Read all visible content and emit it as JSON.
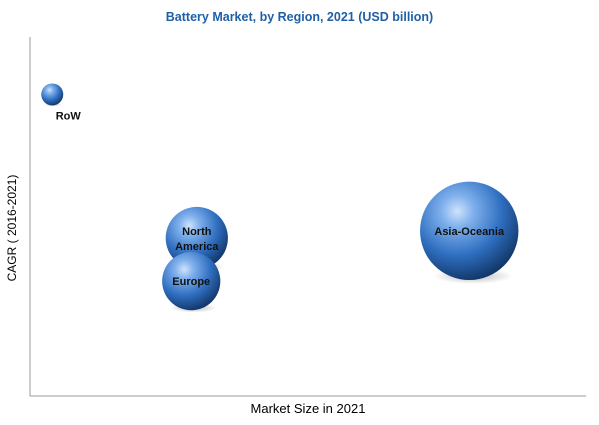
{
  "chart_data": {
    "type": "scatter",
    "title": "Battery Market, by Region, 2021 (USD billion)",
    "xlabel": "Market Size in 2021",
    "ylabel": "CAGR ( 2016-2021)",
    "grid": false,
    "legend": "none",
    "xlim": [
      0,
      100
    ],
    "ylim": [
      0,
      100
    ],
    "series": [
      {
        "points": [
          {
            "label": "RoW",
            "label_lines": [
              "RoW"
            ],
            "x": 4,
            "y": 84,
            "size": 1.0
          },
          {
            "label": "North America",
            "label_lines": [
              "North",
              "America"
            ],
            "x": 30,
            "y": 44,
            "size": 8.0
          },
          {
            "label": "Europe",
            "label_lines": [
              "Europe"
            ],
            "x": 29,
            "y": 32,
            "size": 7.0
          },
          {
            "label": "Asia-Oceania",
            "label_lines": [
              "Asia-Oceania"
            ],
            "x": 79,
            "y": 46,
            "size": 20.0
          }
        ]
      }
    ],
    "bubble_color": "#2e6cb5"
  }
}
